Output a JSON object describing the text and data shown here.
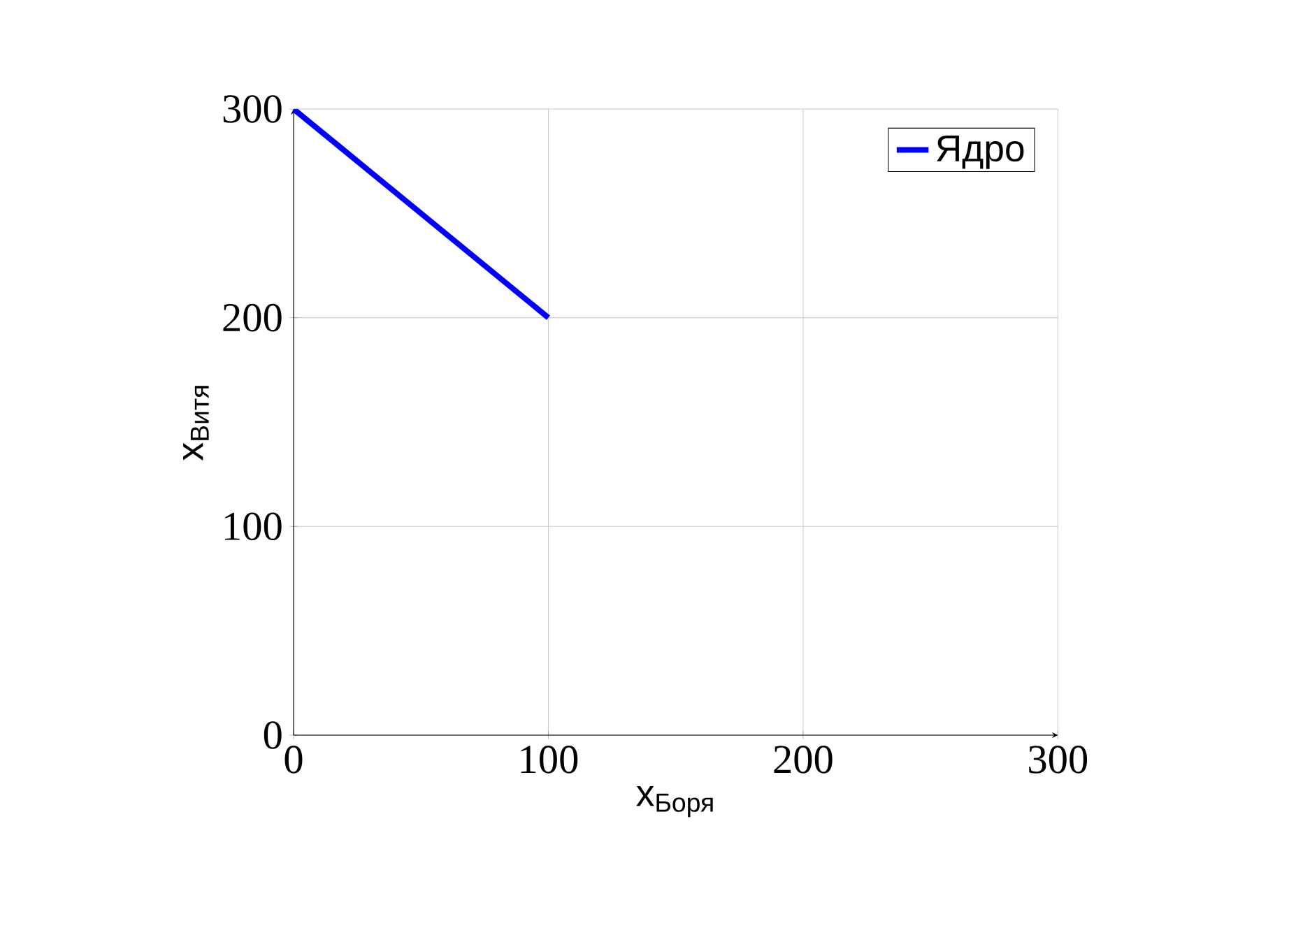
{
  "chart_data": {
    "type": "line",
    "xlabel": "x$_{Боря}$",
    "ylabel": "x$_{Витя}$",
    "x": [
      0,
      100
    ],
    "series": [
      {
        "name": "Ядро",
        "color": "#0000ff",
        "values": [
          300,
          200
        ]
      }
    ],
    "xlim": [
      0,
      300
    ],
    "ylim": [
      0,
      300
    ],
    "xticks": [
      0,
      100,
      200,
      300
    ],
    "yticks": [
      0,
      100,
      200,
      300
    ],
    "grid": true,
    "legend": "top right",
    "line_style": "solid"
  }
}
